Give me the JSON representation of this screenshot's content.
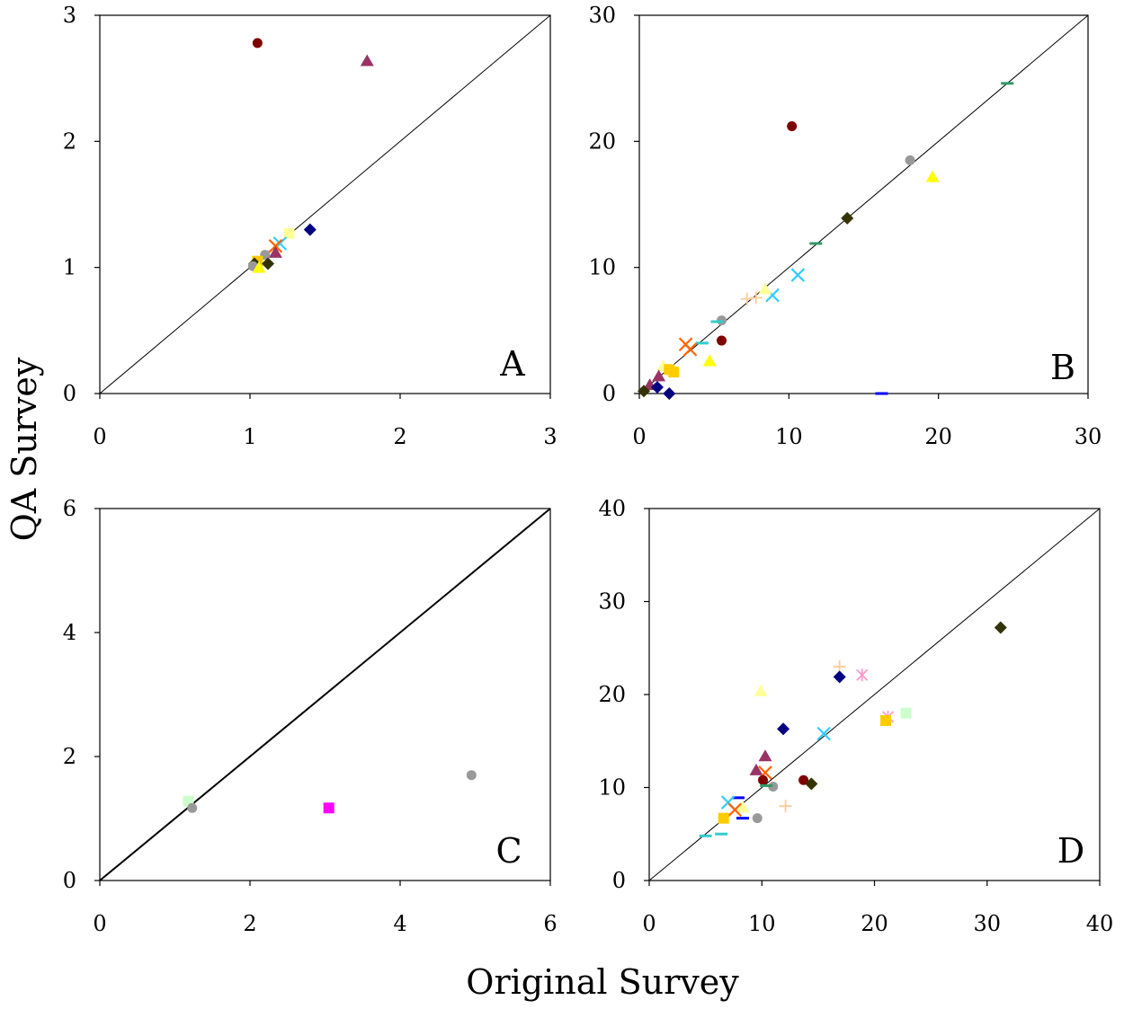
{
  "figure": {
    "y_title": "QA Survey",
    "x_title": "Original Survey"
  },
  "chart_data": [
    {
      "panel": "A",
      "type": "scatter",
      "xlim": [
        0,
        3
      ],
      "ylim": [
        0,
        3
      ],
      "xticks": [
        "0",
        "1",
        "2",
        "3"
      ],
      "yticks": [
        "0",
        "1",
        "2",
        "3"
      ],
      "identity_line": true,
      "points": [
        {
          "x": 1.05,
          "y": 2.78,
          "marker": "circle",
          "color": "#7f0000"
        },
        {
          "x": 1.78,
          "y": 2.64,
          "marker": "triangle",
          "color": "#993366"
        },
        {
          "x": 1.4,
          "y": 1.3,
          "marker": "diamond",
          "color": "#000080"
        },
        {
          "x": 1.26,
          "y": 1.27,
          "marker": "square",
          "color": "#ffff99"
        },
        {
          "x": 1.2,
          "y": 1.19,
          "marker": "x",
          "color": "#33ccff"
        },
        {
          "x": 1.17,
          "y": 1.17,
          "marker": "x",
          "color": "#ff6600"
        },
        {
          "x": 1.17,
          "y": 1.12,
          "marker": "triangle",
          "color": "#993366"
        },
        {
          "x": 1.1,
          "y": 1.1,
          "marker": "circle",
          "color": "#999999"
        },
        {
          "x": 1.05,
          "y": 1.05,
          "marker": "square",
          "color": "#ffcc00"
        },
        {
          "x": 1.12,
          "y": 1.03,
          "marker": "diamond",
          "color": "#333300"
        },
        {
          "x": 1.03,
          "y": 1.03,
          "marker": "diamond",
          "color": "#333300"
        },
        {
          "x": 1.02,
          "y": 1.01,
          "marker": "circle",
          "color": "#999999"
        },
        {
          "x": 1.06,
          "y": 1.0,
          "marker": "triangle",
          "color": "#ffff00"
        }
      ]
    },
    {
      "panel": "B",
      "type": "scatter",
      "xlim": [
        0,
        30
      ],
      "ylim": [
        0,
        30
      ],
      "xticks": [
        "0",
        "10",
        "20",
        "30"
      ],
      "yticks": [
        "0",
        "10",
        "20",
        "30"
      ],
      "identity_line": true,
      "points": [
        {
          "x": 10.2,
          "y": 21.2,
          "marker": "circle",
          "color": "#7f0000"
        },
        {
          "x": 18.1,
          "y": 18.5,
          "marker": "circle",
          "color": "#999999"
        },
        {
          "x": 19.6,
          "y": 17.2,
          "marker": "triangle",
          "color": "#ffff00"
        },
        {
          "x": 24.6,
          "y": 24.6,
          "marker": "dash",
          "color": "#339966"
        },
        {
          "x": 13.9,
          "y": 13.9,
          "marker": "diamond",
          "color": "#333300"
        },
        {
          "x": 11.8,
          "y": 11.9,
          "marker": "dash",
          "color": "#339966"
        },
        {
          "x": 10.6,
          "y": 9.4,
          "marker": "x",
          "color": "#33ccff"
        },
        {
          "x": 8.9,
          "y": 7.8,
          "marker": "x",
          "color": "#33ccff"
        },
        {
          "x": 8.4,
          "y": 8.3,
          "marker": "triangle",
          "color": "#ffff99"
        },
        {
          "x": 7.8,
          "y": 7.6,
          "marker": "plus",
          "color": "#ffcc99"
        },
        {
          "x": 7.2,
          "y": 7.5,
          "marker": "plus",
          "color": "#ffcc99"
        },
        {
          "x": 5.5,
          "y": 5.8,
          "marker": "circle",
          "color": "#999999"
        },
        {
          "x": 5.2,
          "y": 5.7,
          "marker": "dash",
          "color": "#33cccc"
        },
        {
          "x": 5.5,
          "y": 4.2,
          "marker": "circle",
          "color": "#7f0000"
        },
        {
          "x": 4.2,
          "y": 4.0,
          "marker": "dash",
          "color": "#33cccc"
        },
        {
          "x": 3.1,
          "y": 3.9,
          "marker": "x",
          "color": "#ff6600"
        },
        {
          "x": 3.4,
          "y": 3.5,
          "marker": "x",
          "color": "#ff6600"
        },
        {
          "x": 4.7,
          "y": 2.6,
          "marker": "triangle",
          "color": "#ffff00"
        },
        {
          "x": 1.6,
          "y": 2.2,
          "marker": "triangle",
          "color": "#ffff99"
        },
        {
          "x": 2.0,
          "y": 1.9,
          "marker": "square",
          "color": "#ffcc00"
        },
        {
          "x": 2.3,
          "y": 1.7,
          "marker": "square",
          "color": "#ffcc00"
        },
        {
          "x": 1.3,
          "y": 1.4,
          "marker": "triangle",
          "color": "#993366"
        },
        {
          "x": 0.7,
          "y": 0.7,
          "marker": "triangle",
          "color": "#993366"
        },
        {
          "x": 1.2,
          "y": 0.5,
          "marker": "diamond",
          "color": "#000080"
        },
        {
          "x": 2.0,
          "y": 0.0,
          "marker": "diamond",
          "color": "#000080"
        },
        {
          "x": 0.3,
          "y": 0.2,
          "marker": "diamond",
          "color": "#333300"
        },
        {
          "x": 16.2,
          "y": 0.0,
          "marker": "dash",
          "color": "#0000ff"
        }
      ]
    },
    {
      "panel": "C",
      "type": "scatter",
      "xlim": [
        0,
        6
      ],
      "ylim": [
        0,
        6
      ],
      "xticks": [
        "0",
        "2",
        "4",
        "6"
      ],
      "yticks": [
        "0",
        "2",
        "4",
        "6"
      ],
      "identity_line": true,
      "points": [
        {
          "x": 4.95,
          "y": 1.7,
          "marker": "circle",
          "color": "#999999"
        },
        {
          "x": 1.18,
          "y": 1.28,
          "marker": "square",
          "color": "#ccffcc"
        },
        {
          "x": 1.23,
          "y": 1.17,
          "marker": "circle",
          "color": "#999999"
        },
        {
          "x": 3.05,
          "y": 1.17,
          "marker": "square",
          "color": "#ff00ff"
        }
      ]
    },
    {
      "panel": "D",
      "type": "scatter",
      "xlim": [
        0,
        40
      ],
      "ylim": [
        0,
        40
      ],
      "xticks": [
        "0",
        "10",
        "20",
        "30",
        "40"
      ],
      "yticks": [
        "0",
        "10",
        "20",
        "30",
        "40"
      ],
      "identity_line": true,
      "points": [
        {
          "x": 31.2,
          "y": 27.2,
          "marker": "diamond",
          "color": "#333300"
        },
        {
          "x": 16.9,
          "y": 23.0,
          "marker": "plus",
          "color": "#ffcc99"
        },
        {
          "x": 16.9,
          "y": 21.9,
          "marker": "diamond",
          "color": "#000080"
        },
        {
          "x": 18.9,
          "y": 22.1,
          "marker": "star",
          "color": "#ff99cc"
        },
        {
          "x": 21.2,
          "y": 17.6,
          "marker": "star",
          "color": "#ff99cc"
        },
        {
          "x": 9.9,
          "y": 20.4,
          "marker": "triangle",
          "color": "#ffff99"
        },
        {
          "x": 22.8,
          "y": 18.0,
          "marker": "square",
          "color": "#ccffcc"
        },
        {
          "x": 21.0,
          "y": 17.2,
          "marker": "square",
          "color": "#ffcc00"
        },
        {
          "x": 11.9,
          "y": 16.3,
          "marker": "diamond",
          "color": "#000080"
        },
        {
          "x": 15.5,
          "y": 15.8,
          "marker": "x",
          "color": "#33ccff"
        },
        {
          "x": 10.3,
          "y": 13.4,
          "marker": "triangle",
          "color": "#993366"
        },
        {
          "x": 9.5,
          "y": 11.9,
          "marker": "triangle",
          "color": "#993366"
        },
        {
          "x": 10.3,
          "y": 11.6,
          "marker": "x",
          "color": "#ff6600"
        },
        {
          "x": 10.1,
          "y": 10.8,
          "marker": "circle",
          "color": "#7f0000"
        },
        {
          "x": 13.7,
          "y": 10.8,
          "marker": "circle",
          "color": "#7f0000"
        },
        {
          "x": 14.4,
          "y": 10.4,
          "marker": "diamond",
          "color": "#333300"
        },
        {
          "x": 11.0,
          "y": 10.1,
          "marker": "circle",
          "color": "#999999"
        },
        {
          "x": 10.4,
          "y": 10.2,
          "marker": "dash",
          "color": "#339966"
        },
        {
          "x": 12.1,
          "y": 8.0,
          "marker": "plus",
          "color": "#ffcc99"
        },
        {
          "x": 7.9,
          "y": 8.9,
          "marker": "dash",
          "color": "#0000ff"
        },
        {
          "x": 7.0,
          "y": 8.4,
          "marker": "x",
          "color": "#33ccff"
        },
        {
          "x": 8.3,
          "y": 7.9,
          "marker": "triangle",
          "color": "#ffff99"
        },
        {
          "x": 7.6,
          "y": 7.6,
          "marker": "x",
          "color": "#ff6600"
        },
        {
          "x": 9.6,
          "y": 6.7,
          "marker": "circle",
          "color": "#999999"
        },
        {
          "x": 8.3,
          "y": 6.7,
          "marker": "dash",
          "color": "#0000ff"
        },
        {
          "x": 6.6,
          "y": 6.7,
          "marker": "square",
          "color": "#ffcc00"
        },
        {
          "x": 6.4,
          "y": 5.0,
          "marker": "dash",
          "color": "#33cccc"
        },
        {
          "x": 5.0,
          "y": 4.8,
          "marker": "dash",
          "color": "#33cccc"
        }
      ]
    }
  ]
}
